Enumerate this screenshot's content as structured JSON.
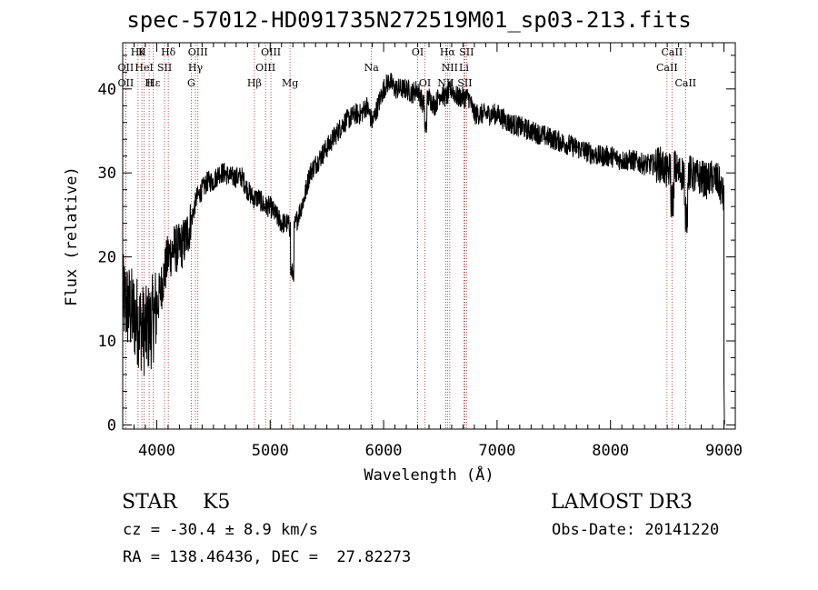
{
  "chart_data": {
    "type": "line",
    "title": "spec-57012-HD091735N272519M01_sp03-213.fits",
    "xlabel": "Wavelength (Å)",
    "ylabel": "Flux (relative)",
    "xlim": [
      3700,
      9100
    ],
    "ylim": [
      -0.5,
      45.5
    ],
    "xticks": [
      4000,
      5000,
      6000,
      7000,
      8000,
      9000
    ],
    "yticks": [
      0,
      10,
      20,
      30,
      40
    ],
    "grid": false,
    "series": [
      {
        "name": "spectrum",
        "x": [
          3700,
          3750,
          3800,
          3850,
          3900,
          3950,
          4000,
          4050,
          4100,
          4150,
          4200,
          4250,
          4300,
          4350,
          4400,
          4450,
          4500,
          4550,
          4600,
          4650,
          4700,
          4750,
          4800,
          4850,
          4900,
          4950,
          5000,
          5050,
          5100,
          5150,
          5200,
          5250,
          5300,
          5350,
          5400,
          5450,
          5500,
          5550,
          5600,
          5650,
          5700,
          5750,
          5800,
          5850,
          5900,
          5950,
          6000,
          6050,
          6100,
          6150,
          6200,
          6250,
          6300,
          6350,
          6400,
          6450,
          6500,
          6550,
          6600,
          6650,
          6700,
          6750,
          6800,
          6900,
          7000,
          7100,
          7200,
          7300,
          7400,
          7500,
          7600,
          7700,
          7800,
          7900,
          8000,
          8100,
          8200,
          8300,
          8400,
          8450,
          8500,
          8550,
          8600,
          8650,
          8700,
          8750,
          8800,
          8850,
          8900,
          8950,
          9000
        ],
        "values": [
          15,
          14,
          13,
          12,
          11,
          12,
          14,
          17,
          20,
          21,
          21,
          22,
          24,
          27,
          28,
          29,
          29,
          30,
          30,
          29.5,
          29.5,
          29.5,
          28,
          27,
          27,
          26,
          26,
          25,
          24,
          24,
          23,
          25,
          27,
          30,
          31,
          32,
          33,
          34,
          35,
          36,
          36.5,
          37,
          37,
          38,
          36,
          38,
          40,
          41,
          40,
          40,
          40,
          39.5,
          40,
          38,
          39,
          38,
          39.5,
          39,
          40,
          39,
          39,
          39,
          37,
          37,
          37,
          36,
          35.5,
          35,
          34.5,
          34,
          33.5,
          33,
          32.5,
          32,
          32,
          31.5,
          31.5,
          31,
          31,
          31,
          30,
          31,
          30,
          30,
          30,
          29.5,
          29.5,
          29,
          29.5,
          29,
          27
        ],
        "color": "#000000"
      }
    ],
    "line_labels": [
      {
        "wave": 3835,
        "text": "Hθ",
        "row": 1
      },
      {
        "wave": 3869,
        "text": "K",
        "row": 1
      },
      {
        "wave": 4102,
        "text": "Hδ",
        "row": 1
      },
      {
        "wave": 4363,
        "text": "OIII",
        "row": 1
      },
      {
        "wave": 5007,
        "text": "OIII",
        "row": 1
      },
      {
        "wave": 6300,
        "text": "OI",
        "row": 1
      },
      {
        "wave": 6563,
        "text": "Hα",
        "row": 1
      },
      {
        "wave": 6731,
        "text": "SII",
        "row": 1
      },
      {
        "wave": 8542,
        "text": "CaII",
        "row": 1
      },
      {
        "wave": 3727,
        "text": "OII",
        "row": 2
      },
      {
        "wave": 3889,
        "text": "HeI",
        "row": 2
      },
      {
        "wave": 4069,
        "text": "SII",
        "row": 2
      },
      {
        "wave": 4341,
        "text": "Hγ",
        "row": 2
      },
      {
        "wave": 4959,
        "text": "OIII",
        "row": 2
      },
      {
        "wave": 5893,
        "text": "Na",
        "row": 2
      },
      {
        "wave": 6583,
        "text": "NII",
        "row": 2
      },
      {
        "wave": 6708,
        "text": "Li",
        "row": 2
      },
      {
        "wave": 8498,
        "text": "CaII",
        "row": 2
      },
      {
        "wave": 3727,
        "text": "OII",
        "row": 3
      },
      {
        "wave": 3970,
        "text": "Hε",
        "row": 3
      },
      {
        "wave": 3933,
        "text": "H",
        "row": 3
      },
      {
        "wave": 4304,
        "text": "G",
        "row": 3
      },
      {
        "wave": 4861,
        "text": "Hβ",
        "row": 3
      },
      {
        "wave": 5175,
        "text": "Mg",
        "row": 3
      },
      {
        "wave": 6364,
        "text": "OI",
        "row": 3
      },
      {
        "wave": 6548,
        "text": "NII",
        "row": 3
      },
      {
        "wave": 6716,
        "text": "SII",
        "row": 3
      },
      {
        "wave": 8662,
        "text": "CaII",
        "row": 3
      }
    ]
  },
  "info": {
    "object_class": "STAR    K5",
    "survey": "LAMOST DR3",
    "redshift": "cz = -30.4 ± 8.9 km/s",
    "obs_date": "Obs-Date: 20141220",
    "coords": "RA = 138.46436, DEC =  27.82273"
  }
}
